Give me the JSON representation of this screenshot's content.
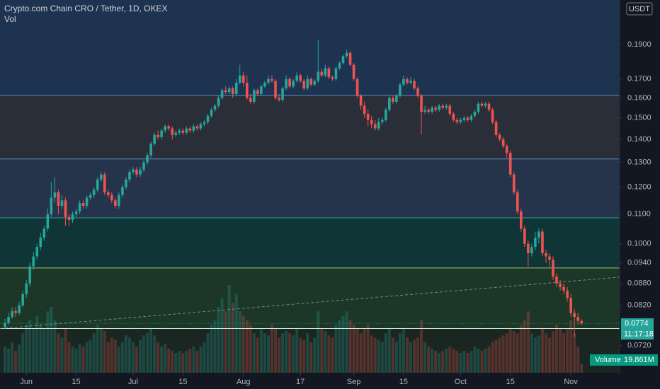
{
  "chart_data": {
    "type": "candlestick",
    "title": "Crypto.com Chain CRO / Tether, 1D, OKEX",
    "volume_legend": "Vol",
    "currency": "USDT",
    "countdown": "11:17:18",
    "volume_tag_name": "Volume",
    "last_volume_label": "19.861M",
    "log_scale": true,
    "up_color": "#26a69a",
    "down_color": "#ef5350",
    "ylim": [
      0.066,
      0.2193
    ],
    "yticks": [
      {
        "value": 0.19,
        "label": "0.1900"
      },
      {
        "value": 0.17,
        "label": "0.1700"
      },
      {
        "value": 0.16,
        "label": "0.1600"
      },
      {
        "value": 0.15,
        "label": "0.1500"
      },
      {
        "value": 0.14,
        "label": "0.1400"
      },
      {
        "value": 0.13,
        "label": "0.1300"
      },
      {
        "value": 0.12,
        "label": "0.1200"
      },
      {
        "value": 0.11,
        "label": "0.1100"
      },
      {
        "value": 0.1,
        "label": "0.1000"
      },
      {
        "value": 0.094,
        "label": "0.0940"
      },
      {
        "value": 0.088,
        "label": "0.0880"
      },
      {
        "value": 0.082,
        "label": "0.0820"
      },
      {
        "value": 0.072,
        "label": "0.0720"
      }
    ],
    "xlim": [
      -1.4,
      172.7
    ],
    "xticks": [
      {
        "value": 6,
        "label": "Jun"
      },
      {
        "value": 20,
        "label": "15"
      },
      {
        "value": 36,
        "label": "Jul"
      },
      {
        "value": 50,
        "label": "15"
      },
      {
        "value": 67,
        "label": "Aug"
      },
      {
        "value": 83,
        "label": "17"
      },
      {
        "value": 98,
        "label": "Sep"
      },
      {
        "value": 112,
        "label": "15"
      },
      {
        "value": 128,
        "label": "Oct"
      },
      {
        "value": 142,
        "label": "15"
      },
      {
        "value": 159,
        "label": "Nov"
      }
    ],
    "levels": [
      0.1613,
      0.1314,
      0.1087,
      0.0925,
      0.0761
    ],
    "level_colors": [
      "#5d8fc9",
      "#5d8fc9",
      "#2a9d8f",
      "#9cc46c",
      "#d6ecd2"
    ],
    "band_colors": [
      "#1e3350",
      "#2a2e39",
      "#25334b",
      "#0f3536",
      "#1c3628",
      "#1a2621"
    ],
    "trendline": {
      "x": [
        -1.4,
        172.7
      ],
      "y": [
        0.0761,
        0.0898
      ]
    },
    "vlim": [
      0,
      250
    ],
    "candles": [
      [
        0.0765,
        0.0785,
        0.076,
        0.0775
      ],
      [
        0.0775,
        0.08,
        0.077,
        0.079
      ],
      [
        0.079,
        0.0815,
        0.0785,
        0.0805
      ],
      [
        0.0805,
        0.0815,
        0.079,
        0.08
      ],
      [
        0.08,
        0.083,
        0.0795,
        0.082
      ],
      [
        0.082,
        0.086,
        0.0815,
        0.085
      ],
      [
        0.085,
        0.089,
        0.084,
        0.088
      ],
      [
        0.088,
        0.094,
        0.087,
        0.093
      ],
      [
        0.093,
        0.0975,
        0.092,
        0.096
      ],
      [
        0.096,
        0.1,
        0.095,
        0.099
      ],
      [
        0.099,
        0.1035,
        0.098,
        0.102
      ],
      [
        0.102,
        0.106,
        0.101,
        0.105
      ],
      [
        0.105,
        0.112,
        0.104,
        0.11
      ],
      [
        0.11,
        0.122,
        0.109,
        0.116
      ],
      [
        0.116,
        0.124,
        0.114,
        0.118
      ],
      [
        0.118,
        0.119,
        0.11,
        0.113
      ],
      [
        0.113,
        0.117,
        0.112,
        0.115
      ],
      [
        0.115,
        0.116,
        0.106,
        0.109
      ],
      [
        0.109,
        0.11,
        0.106,
        0.108
      ],
      [
        0.108,
        0.111,
        0.107,
        0.11
      ],
      [
        0.11,
        0.112,
        0.109,
        0.111
      ],
      [
        0.111,
        0.115,
        0.11,
        0.114
      ],
      [
        0.114,
        0.115,
        0.112,
        0.113
      ],
      [
        0.113,
        0.117,
        0.112,
        0.116
      ],
      [
        0.116,
        0.118,
        0.115,
        0.117
      ],
      [
        0.117,
        0.12,
        0.116,
        0.119
      ],
      [
        0.119,
        0.124,
        0.118,
        0.123
      ],
      [
        0.123,
        0.126,
        0.122,
        0.125
      ],
      [
        0.125,
        0.126,
        0.117,
        0.118
      ],
      [
        0.118,
        0.119,
        0.116,
        0.117
      ],
      [
        0.117,
        0.118,
        0.114,
        0.115
      ],
      [
        0.115,
        0.116,
        0.112,
        0.113
      ],
      [
        0.113,
        0.118,
        0.112,
        0.117
      ],
      [
        0.117,
        0.121,
        0.116,
        0.12
      ],
      [
        0.12,
        0.124,
        0.119,
        0.123
      ],
      [
        0.123,
        0.127,
        0.122,
        0.126
      ],
      [
        0.126,
        0.128,
        0.125,
        0.127
      ],
      [
        0.127,
        0.128,
        0.124,
        0.125
      ],
      [
        0.125,
        0.128,
        0.124,
        0.127
      ],
      [
        0.127,
        0.131,
        0.126,
        0.13
      ],
      [
        0.13,
        0.134,
        0.129,
        0.133
      ],
      [
        0.133,
        0.139,
        0.132,
        0.138
      ],
      [
        0.138,
        0.143,
        0.137,
        0.142
      ],
      [
        0.142,
        0.144,
        0.14,
        0.141
      ],
      [
        0.141,
        0.145,
        0.14,
        0.144
      ],
      [
        0.144,
        0.147,
        0.143,
        0.146
      ],
      [
        0.146,
        0.147,
        0.144,
        0.145
      ],
      [
        0.145,
        0.146,
        0.14,
        0.142
      ],
      [
        0.142,
        0.144,
        0.141,
        0.143
      ],
      [
        0.143,
        0.145,
        0.142,
        0.144
      ],
      [
        0.144,
        0.145,
        0.142,
        0.143
      ],
      [
        0.143,
        0.146,
        0.142,
        0.145
      ],
      [
        0.145,
        0.146,
        0.143,
        0.144
      ],
      [
        0.144,
        0.147,
        0.143,
        0.146
      ],
      [
        0.146,
        0.147,
        0.144,
        0.145
      ],
      [
        0.145,
        0.148,
        0.144,
        0.147
      ],
      [
        0.147,
        0.149,
        0.146,
        0.148
      ],
      [
        0.148,
        0.152,
        0.147,
        0.151
      ],
      [
        0.151,
        0.155,
        0.15,
        0.154
      ],
      [
        0.154,
        0.157,
        0.153,
        0.156
      ],
      [
        0.156,
        0.161,
        0.155,
        0.16
      ],
      [
        0.16,
        0.165,
        0.159,
        0.164
      ],
      [
        0.164,
        0.166,
        0.162,
        0.163
      ],
      [
        0.163,
        0.166,
        0.162,
        0.165
      ],
      [
        0.165,
        0.166,
        0.16,
        0.162
      ],
      [
        0.162,
        0.17,
        0.161,
        0.168
      ],
      [
        0.168,
        0.178,
        0.167,
        0.172
      ],
      [
        0.172,
        0.174,
        0.166,
        0.168
      ],
      [
        0.168,
        0.172,
        0.159,
        0.16
      ],
      [
        0.16,
        0.162,
        0.157,
        0.158
      ],
      [
        0.158,
        0.165,
        0.157,
        0.164
      ],
      [
        0.164,
        0.165,
        0.161,
        0.162
      ],
      [
        0.162,
        0.167,
        0.161,
        0.166
      ],
      [
        0.166,
        0.169,
        0.165,
        0.168
      ],
      [
        0.168,
        0.172,
        0.167,
        0.17
      ],
      [
        0.17,
        0.172,
        0.168,
        0.169
      ],
      [
        0.169,
        0.17,
        0.159,
        0.16
      ],
      [
        0.16,
        0.162,
        0.158,
        0.159
      ],
      [
        0.159,
        0.166,
        0.158,
        0.165
      ],
      [
        0.165,
        0.172,
        0.164,
        0.17
      ],
      [
        0.17,
        0.171,
        0.165,
        0.166
      ],
      [
        0.166,
        0.17,
        0.165,
        0.169
      ],
      [
        0.169,
        0.174,
        0.168,
        0.172
      ],
      [
        0.172,
        0.173,
        0.168,
        0.169
      ],
      [
        0.169,
        0.17,
        0.164,
        0.165
      ],
      [
        0.165,
        0.172,
        0.164,
        0.17
      ],
      [
        0.17,
        0.171,
        0.166,
        0.167
      ],
      [
        0.167,
        0.17,
        0.166,
        0.169
      ],
      [
        0.169,
        0.193,
        0.168,
        0.174
      ],
      [
        0.174,
        0.176,
        0.171,
        0.172
      ],
      [
        0.172,
        0.178,
        0.171,
        0.176
      ],
      [
        0.176,
        0.177,
        0.17,
        0.171
      ],
      [
        0.171,
        0.172,
        0.169,
        0.17
      ],
      [
        0.17,
        0.177,
        0.169,
        0.176
      ],
      [
        0.176,
        0.18,
        0.175,
        0.179
      ],
      [
        0.179,
        0.184,
        0.178,
        0.183
      ],
      [
        0.183,
        0.187,
        0.182,
        0.185
      ],
      [
        0.185,
        0.186,
        0.177,
        0.178
      ],
      [
        0.178,
        0.179,
        0.169,
        0.17
      ],
      [
        0.17,
        0.171,
        0.16,
        0.161
      ],
      [
        0.161,
        0.162,
        0.154,
        0.156
      ],
      [
        0.156,
        0.158,
        0.15,
        0.152
      ],
      [
        0.152,
        0.154,
        0.146,
        0.149
      ],
      [
        0.149,
        0.151,
        0.145,
        0.147
      ],
      [
        0.147,
        0.149,
        0.144,
        0.145
      ],
      [
        0.145,
        0.15,
        0.144,
        0.148
      ],
      [
        0.148,
        0.15,
        0.147,
        0.149
      ],
      [
        0.149,
        0.155,
        0.148,
        0.154
      ],
      [
        0.154,
        0.161,
        0.153,
        0.16
      ],
      [
        0.16,
        0.161,
        0.157,
        0.158
      ],
      [
        0.158,
        0.162,
        0.157,
        0.161
      ],
      [
        0.161,
        0.168,
        0.16,
        0.167
      ],
      [
        0.167,
        0.172,
        0.166,
        0.17
      ],
      [
        0.17,
        0.171,
        0.167,
        0.168
      ],
      [
        0.168,
        0.171,
        0.167,
        0.169
      ],
      [
        0.169,
        0.17,
        0.164,
        0.165
      ],
      [
        0.165,
        0.166,
        0.16,
        0.161
      ],
      [
        0.161,
        0.162,
        0.142,
        0.153
      ],
      [
        0.153,
        0.156,
        0.152,
        0.154
      ],
      [
        0.154,
        0.155,
        0.152,
        0.153
      ],
      [
        0.153,
        0.156,
        0.152,
        0.155
      ],
      [
        0.155,
        0.156,
        0.153,
        0.154
      ],
      [
        0.154,
        0.157,
        0.153,
        0.156
      ],
      [
        0.156,
        0.157,
        0.154,
        0.155
      ],
      [
        0.155,
        0.157,
        0.154,
        0.156
      ],
      [
        0.156,
        0.157,
        0.151,
        0.152
      ],
      [
        0.152,
        0.153,
        0.148,
        0.149
      ],
      [
        0.149,
        0.15,
        0.147,
        0.148
      ],
      [
        0.148,
        0.15,
        0.147,
        0.149
      ],
      [
        0.149,
        0.151,
        0.148,
        0.15
      ],
      [
        0.15,
        0.151,
        0.148,
        0.149
      ],
      [
        0.149,
        0.152,
        0.148,
        0.151
      ],
      [
        0.151,
        0.154,
        0.15,
        0.153
      ],
      [
        0.153,
        0.158,
        0.152,
        0.157
      ],
      [
        0.157,
        0.158,
        0.155,
        0.156
      ],
      [
        0.156,
        0.158,
        0.155,
        0.157
      ],
      [
        0.157,
        0.158,
        0.153,
        0.154
      ],
      [
        0.154,
        0.155,
        0.147,
        0.148
      ],
      [
        0.148,
        0.149,
        0.141,
        0.142
      ],
      [
        0.142,
        0.143,
        0.139,
        0.14
      ],
      [
        0.14,
        0.141,
        0.136,
        0.137
      ],
      [
        0.137,
        0.138,
        0.132,
        0.134
      ],
      [
        0.134,
        0.135,
        0.124,
        0.125
      ],
      [
        0.125,
        0.126,
        0.117,
        0.118
      ],
      [
        0.118,
        0.119,
        0.11,
        0.111
      ],
      [
        0.111,
        0.112,
        0.104,
        0.105
      ],
      [
        0.105,
        0.106,
        0.099,
        0.1
      ],
      [
        0.1,
        0.101,
        0.093,
        0.097
      ],
      [
        0.097,
        0.1,
        0.096,
        0.099
      ],
      [
        0.099,
        0.104,
        0.098,
        0.102
      ],
      [
        0.102,
        0.105,
        0.1,
        0.104
      ],
      [
        0.104,
        0.105,
        0.096,
        0.097
      ],
      [
        0.097,
        0.098,
        0.094,
        0.096
      ],
      [
        0.096,
        0.097,
        0.093,
        0.095
      ],
      [
        0.095,
        0.096,
        0.089,
        0.09
      ],
      [
        0.09,
        0.091,
        0.087,
        0.088
      ],
      [
        0.088,
        0.089,
        0.086,
        0.087
      ],
      [
        0.087,
        0.088,
        0.085,
        0.086
      ],
      [
        0.086,
        0.087,
        0.083,
        0.084
      ],
      [
        0.084,
        0.085,
        0.079,
        0.08
      ],
      [
        0.08,
        0.081,
        0.074,
        0.079
      ],
      [
        0.079,
        0.08,
        0.077,
        0.078
      ],
      [
        0.078,
        0.0785,
        0.077,
        0.0774
      ]
    ],
    "volume": [
      60,
      55,
      70,
      50,
      65,
      90,
      110,
      120,
      100,
      130,
      110,
      100,
      140,
      150,
      120,
      90,
      80,
      100,
      70,
      60,
      55,
      65,
      60,
      70,
      75,
      90,
      110,
      100,
      95,
      70,
      80,
      75,
      60,
      70,
      85,
      80,
      70,
      60,
      75,
      85,
      90,
      100,
      85,
      70,
      60,
      65,
      55,
      50,
      45,
      50,
      45,
      50,
      55,
      60,
      50,
      60,
      70,
      90,
      110,
      120,
      150,
      170,
      140,
      200,
      160,
      180,
      140,
      130,
      120,
      110,
      90,
      80,
      100,
      90,
      85,
      110,
      100,
      80,
      90,
      95,
      90,
      85,
      100,
      80,
      75,
      90,
      70,
      80,
      140,
      100,
      95,
      85,
      80,
      110,
      120,
      130,
      140,
      120,
      110,
      100,
      90,
      100,
      110,
      85,
      80,
      75,
      70,
      90,
      100,
      80,
      70,
      90,
      100,
      80,
      70,
      75,
      80,
      120,
      70,
      60,
      55,
      50,
      45,
      50,
      55,
      60,
      55,
      50,
      45,
      50,
      45,
      50,
      60,
      55,
      50,
      55,
      60,
      70,
      75,
      80,
      85,
      90,
      100,
      95,
      90,
      110,
      120,
      140,
      90,
      80,
      85,
      100,
      90,
      80,
      95,
      110,
      100,
      90,
      100,
      120,
      90,
      60,
      19.861
    ]
  }
}
